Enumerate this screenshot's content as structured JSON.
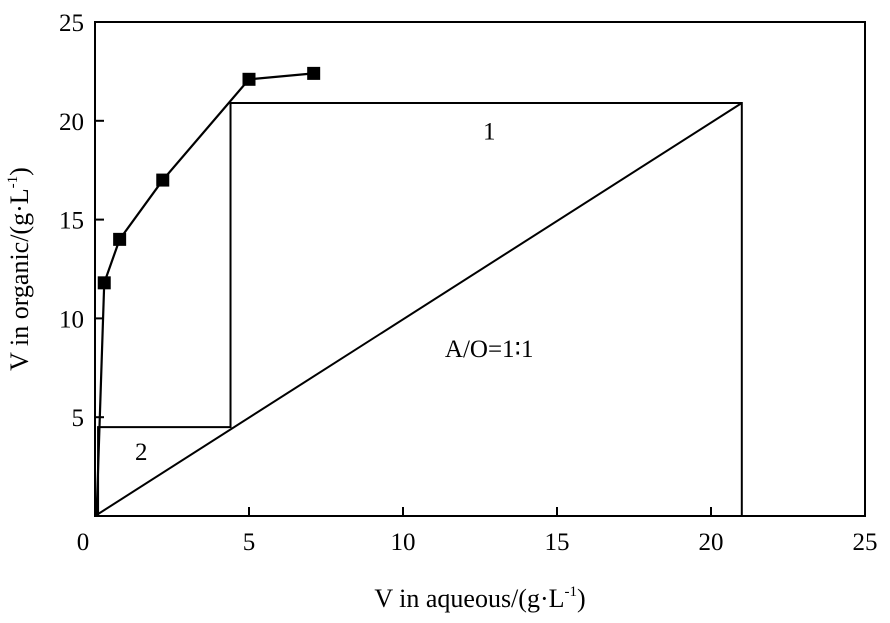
{
  "chart_data": {
    "type": "line",
    "title": "",
    "xlabel": "V in aqueous/(g·L",
    "xlabel_sup": "-1",
    "xlabel_end": ")",
    "ylabel": "V in organic/(g·L",
    "ylabel_sup": "-1",
    "ylabel_end": ")",
    "xlim": [
      0,
      25
    ],
    "ylim": [
      0,
      25
    ],
    "x_ticks": [
      0,
      5,
      10,
      15,
      20,
      25
    ],
    "y_ticks": [
      0,
      5,
      10,
      15,
      20,
      25
    ],
    "x_tick_labels": [
      "0",
      "5",
      "10",
      "15",
      "20",
      "25"
    ],
    "y_tick_labels": [
      "0",
      "5",
      "10",
      "15",
      "20",
      "25"
    ],
    "grid": false,
    "series": [
      {
        "points": [
          [
            0.05,
            0.0
          ],
          [
            0.3,
            11.8
          ],
          [
            0.8,
            14.0
          ],
          [
            2.2,
            17.0
          ],
          [
            5.0,
            22.1
          ],
          [
            7.1,
            22.4
          ]
        ],
        "marker": "square",
        "color": "#000000"
      }
    ],
    "operating_line": [
      [
        0.0,
        0.0
      ],
      [
        21.0,
        20.9
      ]
    ],
    "mccabe_thiele_steps": [
      [
        21.0,
        0.0
      ],
      [
        21.0,
        20.9
      ],
      [
        4.4,
        20.9
      ],
      [
        4.4,
        4.5
      ],
      [
        0.1,
        4.5
      ],
      [
        0.1,
        0.0
      ]
    ],
    "annotations": [
      {
        "text": "1",
        "x": 12.8,
        "y": 19.5
      },
      {
        "text": "A/O=1∶1",
        "x": 12.8,
        "y": 8.5
      },
      {
        "text": "2",
        "x": 1.5,
        "y": 3.3
      }
    ]
  }
}
